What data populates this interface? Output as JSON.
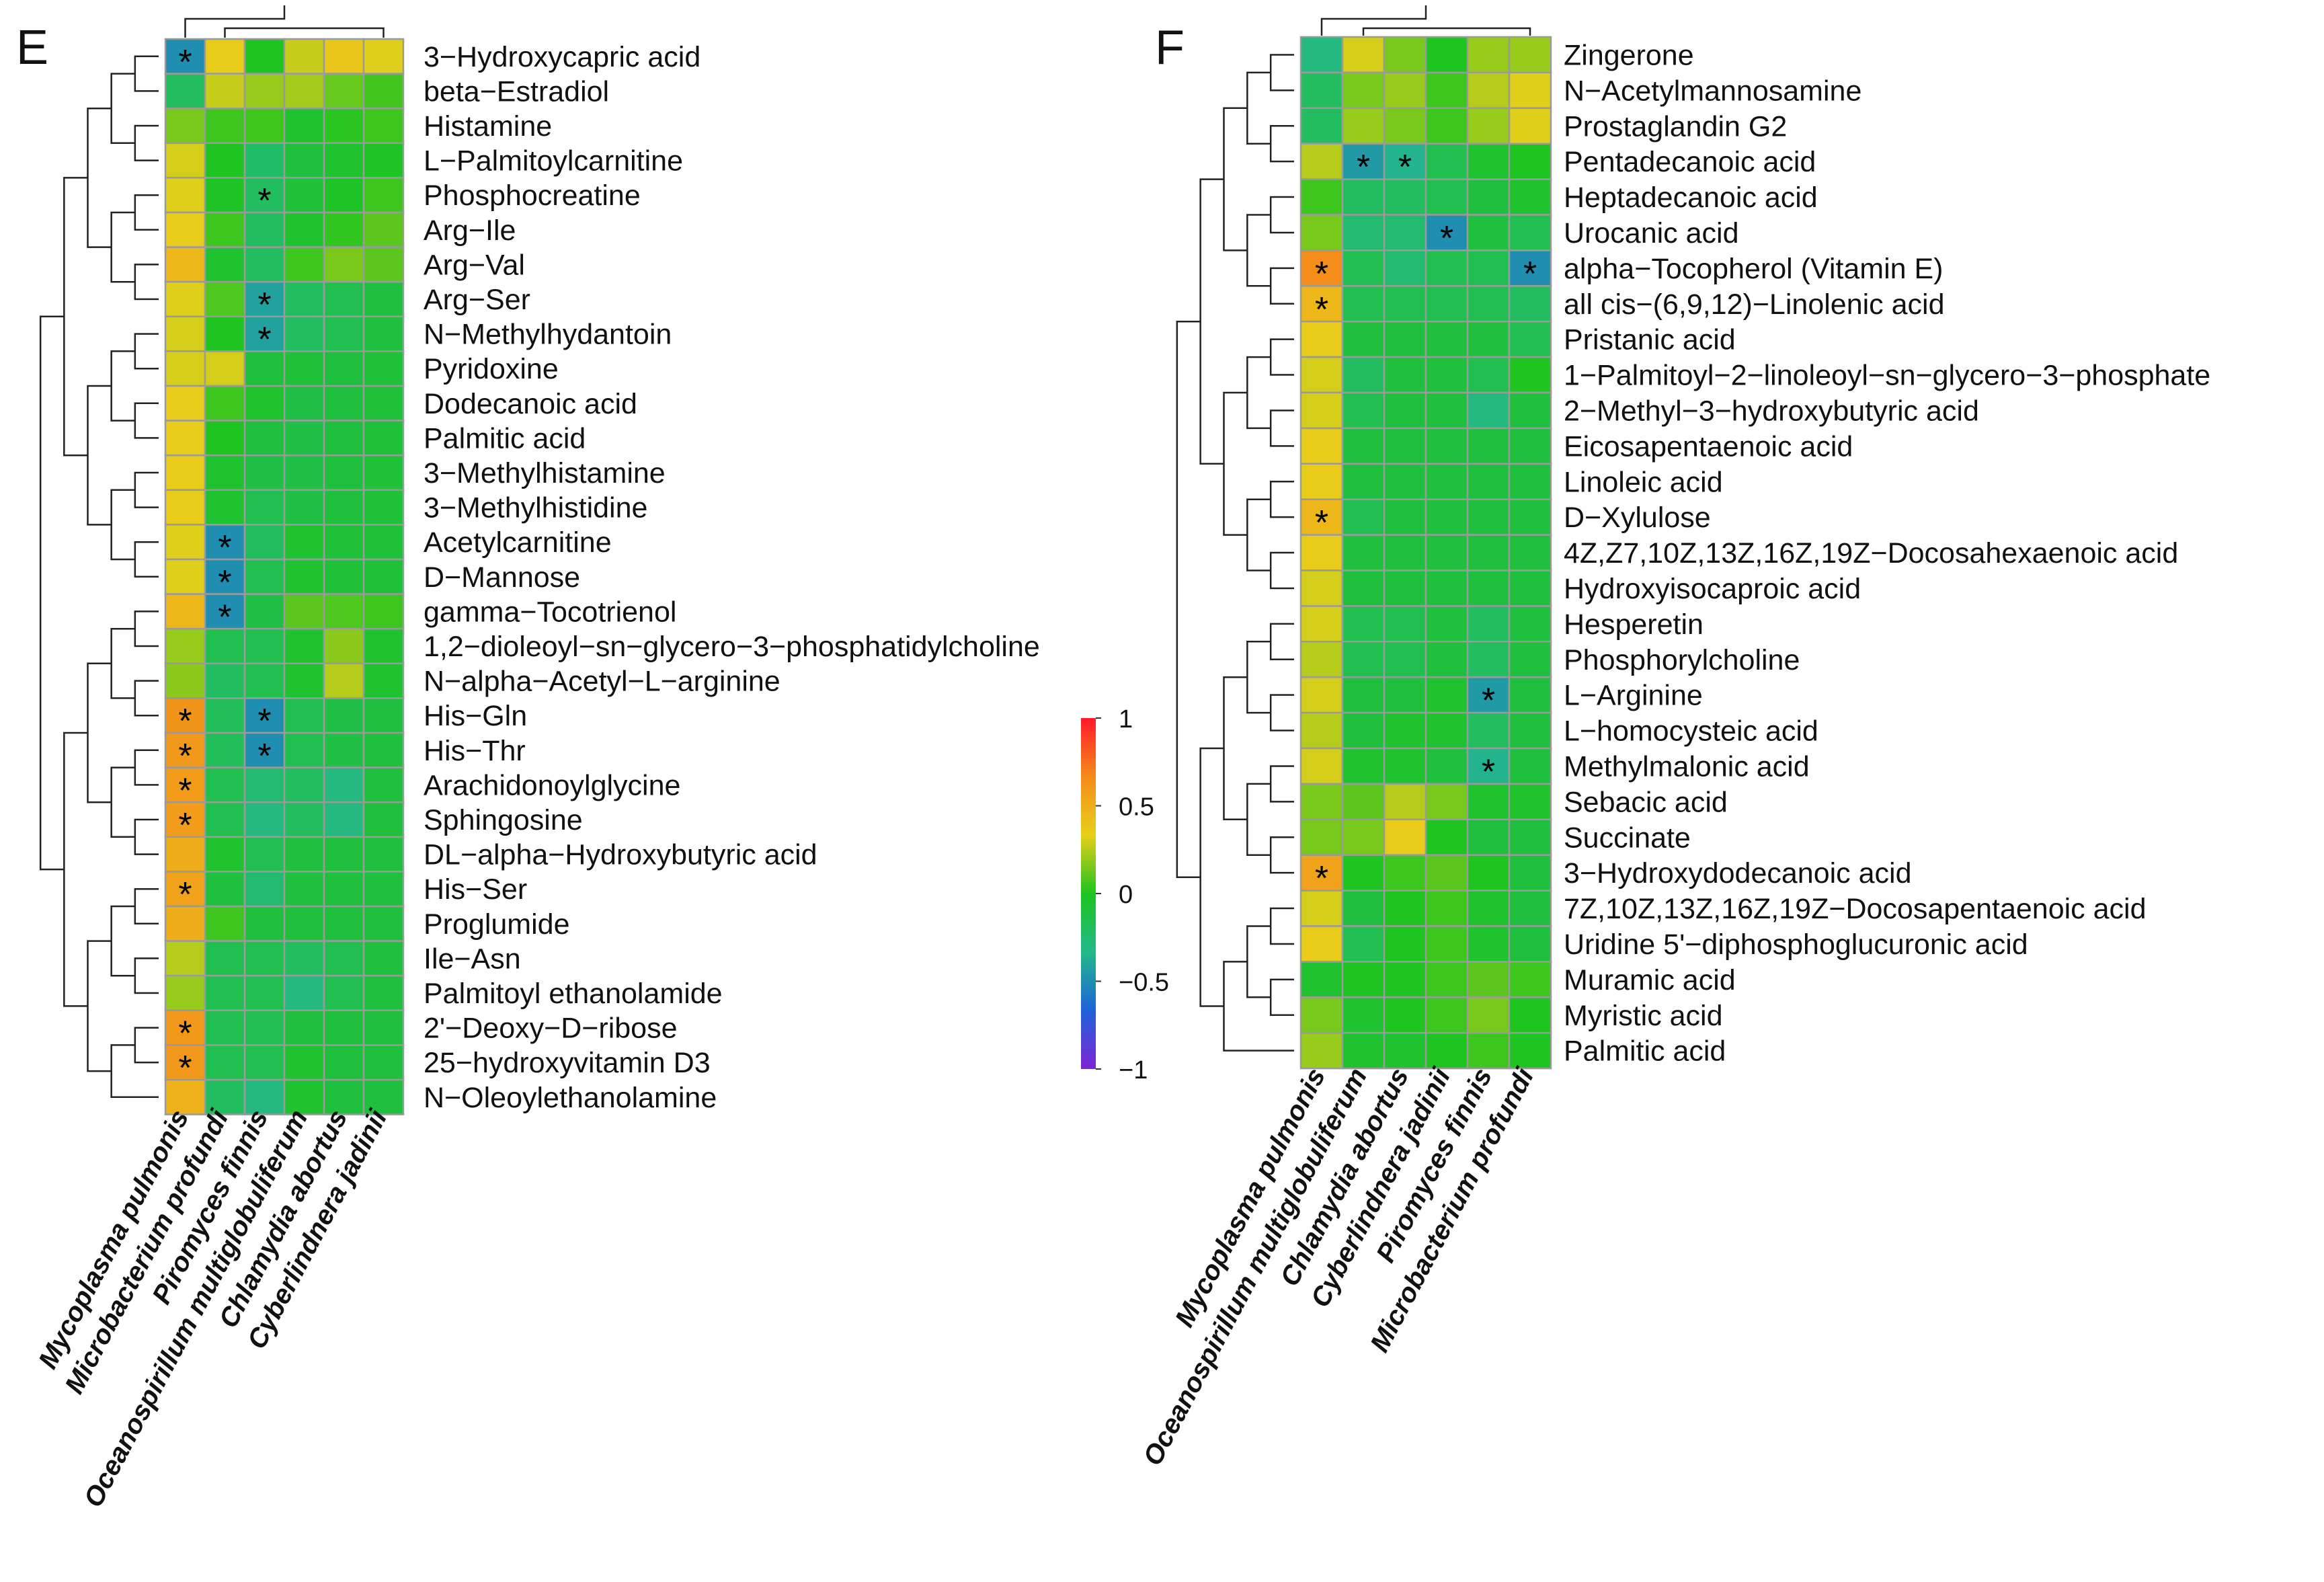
{
  "colors": {
    "scale": [
      "#7f25d6",
      "#1d63d8",
      "#23b88a",
      "#1ec41f",
      "#e8cf1a",
      "#f58a1a",
      "#ff1a2a"
    ],
    "grid": "#9a9a9a",
    "tree": "#222222",
    "text": "#111111"
  },
  "colorbar": {
    "ticks": [
      {
        "value": 1,
        "label": "1"
      },
      {
        "value": 0.5,
        "label": "0.5"
      },
      {
        "value": 0,
        "label": "0"
      },
      {
        "value": -0.5,
        "label": "−0.5"
      },
      {
        "value": -1,
        "label": "−1"
      }
    ]
  },
  "chart_data": [
    {
      "type": "heatmap",
      "panel_label": "E",
      "value_range": [
        -1,
        1
      ],
      "columns": [
        "Mycoplasma pulmonis",
        "Microbacterium profundi",
        "Piromyces finnis",
        "Oceanospirillum multiglobuliferum",
        "Chlamydia abortus",
        "Cyberlindnera jadinii"
      ],
      "rows": [
        "3−Hydroxycapric acid",
        "beta−Estradiol",
        "Histamine",
        "L−Palmitoylcarnitine",
        "Phosphocreatine",
        "Arg−Ile",
        "Arg−Val",
        "Arg−Ser",
        "N−Methylhydantoin",
        "Pyridoxine",
        "Dodecanoic acid",
        "Palmitic acid",
        "3−Methylhistamine",
        "3−Methylhistidine",
        "Acetylcarnitine",
        "D−Mannose",
        "gamma−Tocotrienol",
        "1,2−dioleoyl−sn−glycero−3−phosphatidylcholine",
        "N−alpha−Acetyl−L−arginine",
        "His−Gln",
        "His−Thr",
        "Arachidonoylglycine",
        "Sphingosine",
        "DL−alpha−Hydroxybutyric acid",
        "His−Ser",
        "Proglumide",
        "Ile−Asn",
        "Palmitoyl ethanolamide",
        "2'−Deoxy−D−ribose",
        "25−hydroxyvitamin D3",
        "N−Oleoylethanolamine"
      ],
      "values": [
        [
          -0.5,
          0.35,
          0.0,
          0.28,
          0.38,
          0.32
        ],
        [
          -0.2,
          0.28,
          0.2,
          0.22,
          0.12,
          0.06
        ],
        [
          0.15,
          0.05,
          0.05,
          -0.05,
          0.02,
          0.05
        ],
        [
          0.3,
          0.0,
          -0.22,
          -0.1,
          -0.05,
          -0.02
        ],
        [
          0.32,
          -0.02,
          -0.2,
          -0.08,
          -0.02,
          0.05
        ],
        [
          0.35,
          0.05,
          -0.2,
          -0.05,
          0.03,
          0.1
        ],
        [
          0.45,
          -0.05,
          -0.2,
          0.05,
          0.15,
          0.1
        ],
        [
          0.32,
          0.08,
          -0.42,
          -0.2,
          -0.15,
          -0.1
        ],
        [
          0.3,
          0.0,
          -0.42,
          -0.2,
          -0.15,
          -0.1
        ],
        [
          0.3,
          0.3,
          -0.1,
          -0.08,
          -0.1,
          -0.08
        ],
        [
          0.35,
          0.05,
          -0.05,
          -0.12,
          -0.1,
          -0.08
        ],
        [
          0.35,
          0.0,
          -0.1,
          -0.12,
          -0.1,
          -0.08
        ],
        [
          0.35,
          -0.05,
          -0.12,
          -0.12,
          -0.1,
          -0.08
        ],
        [
          0.35,
          -0.05,
          -0.15,
          -0.12,
          -0.1,
          -0.08
        ],
        [
          0.32,
          -0.5,
          -0.2,
          -0.05,
          -0.08,
          -0.08
        ],
        [
          0.32,
          -0.5,
          -0.15,
          -0.05,
          -0.08,
          -0.08
        ],
        [
          0.45,
          -0.5,
          -0.12,
          0.1,
          0.08,
          0.05
        ],
        [
          0.2,
          -0.15,
          -0.15,
          -0.05,
          0.18,
          -0.05
        ],
        [
          0.18,
          -0.2,
          -0.15,
          -0.05,
          0.25,
          -0.05
        ],
        [
          0.62,
          -0.18,
          -0.5,
          -0.15,
          -0.12,
          -0.1
        ],
        [
          0.6,
          -0.18,
          -0.5,
          -0.15,
          -0.12,
          -0.1
        ],
        [
          0.58,
          -0.15,
          -0.25,
          -0.2,
          -0.3,
          -0.1
        ],
        [
          0.58,
          -0.15,
          -0.3,
          -0.2,
          -0.3,
          -0.1
        ],
        [
          0.5,
          -0.05,
          -0.15,
          -0.1,
          -0.1,
          -0.1
        ],
        [
          0.55,
          -0.1,
          -0.25,
          -0.1,
          -0.1,
          -0.1
        ],
        [
          0.5,
          0.05,
          -0.1,
          -0.1,
          -0.1,
          -0.1
        ],
        [
          0.25,
          -0.15,
          -0.15,
          -0.2,
          -0.15,
          -0.1
        ],
        [
          0.2,
          -0.15,
          -0.15,
          -0.3,
          -0.15,
          -0.1
        ],
        [
          0.6,
          -0.15,
          -0.15,
          -0.1,
          -0.1,
          -0.1
        ],
        [
          0.6,
          -0.15,
          -0.15,
          -0.05,
          -0.1,
          -0.1
        ],
        [
          0.48,
          -0.2,
          -0.3,
          -0.05,
          -0.1,
          -0.1
        ]
      ],
      "significant": [
        [
          0,
          0
        ],
        [
          4,
          2
        ],
        [
          7,
          2
        ],
        [
          8,
          2
        ],
        [
          14,
          1
        ],
        [
          15,
          1
        ],
        [
          16,
          1
        ],
        [
          19,
          0
        ],
        [
          19,
          2
        ],
        [
          20,
          0
        ],
        [
          20,
          2
        ],
        [
          21,
          0
        ],
        [
          22,
          0
        ],
        [
          24,
          0
        ],
        [
          28,
          0
        ],
        [
          29,
          0
        ]
      ],
      "significance_symbol": "*"
    },
    {
      "type": "heatmap",
      "panel_label": "F",
      "value_range": [
        -1,
        1
      ],
      "columns": [
        "Mycoplasma pulmonis",
        "Oceanospirillum multiglobuliferum",
        "Chlamydia abortus",
        "Cyberlindnera jadinii",
        "Piromyces finnis",
        "Microbacterium profundi"
      ],
      "rows": [
        "Zingerone",
        "N−Acetylmannosamine",
        "Prostaglandin G2",
        "Pentadecanoic acid",
        "Heptadecanoic acid",
        "Urocanic acid",
        "alpha−Tocopherol (Vitamin E)",
        "all cis−(6,9,12)−Linolenic acid",
        "Pristanic acid",
        "1−Palmitoyl−2−linoleoyl−sn−glycero−3−phosphate",
        "2−Methyl−3−hydroxybutyric acid",
        "Eicosapentaenoic acid",
        "Linoleic acid",
        "D−Xylulose",
        "4Z,Z7,10Z,13Z,16Z,19Z−Docosahexaenoic acid",
        "Hydroxyisocaproic acid",
        "Hesperetin",
        "Phosphorylcholine",
        "L−Arginine",
        "L−homocysteic acid",
        "Methylmalonic acid",
        "Sebacic acid",
        "Succinate",
        "3−Hydroxydodecanoic acid",
        "7Z,10Z,13Z,16Z,19Z−Docosapentaenoic acid",
        "Uridine 5'−diphosphoglucuronic acid",
        "Muramic acid",
        "Myristic acid",
        "Palmitic acid"
      ],
      "values": [
        [
          -0.3,
          0.3,
          0.15,
          0.0,
          0.2,
          0.2
        ],
        [
          -0.2,
          0.15,
          0.2,
          0.05,
          0.25,
          0.32
        ],
        [
          -0.2,
          0.2,
          0.15,
          0.05,
          0.2,
          0.32
        ],
        [
          0.25,
          -0.45,
          -0.35,
          -0.15,
          -0.05,
          0.0
        ],
        [
          0.05,
          -0.2,
          -0.2,
          -0.15,
          -0.1,
          -0.05
        ],
        [
          0.15,
          -0.25,
          -0.25,
          -0.5,
          -0.1,
          -0.15
        ],
        [
          0.65,
          -0.15,
          -0.25,
          -0.15,
          -0.15,
          -0.5
        ],
        [
          0.45,
          -0.15,
          -0.15,
          -0.15,
          -0.15,
          -0.2
        ],
        [
          0.35,
          -0.1,
          -0.1,
          -0.1,
          -0.1,
          -0.15
        ],
        [
          0.3,
          -0.2,
          -0.1,
          -0.1,
          -0.15,
          0.0
        ],
        [
          0.3,
          -0.15,
          -0.1,
          -0.1,
          -0.3,
          -0.1
        ],
        [
          0.35,
          -0.1,
          -0.1,
          -0.1,
          -0.1,
          -0.1
        ],
        [
          0.35,
          -0.1,
          -0.1,
          -0.1,
          -0.1,
          -0.1
        ],
        [
          0.45,
          -0.15,
          -0.1,
          -0.1,
          -0.1,
          -0.1
        ],
        [
          0.35,
          -0.1,
          -0.1,
          -0.1,
          -0.1,
          -0.1
        ],
        [
          0.3,
          -0.1,
          -0.1,
          -0.1,
          -0.1,
          -0.1
        ],
        [
          0.3,
          -0.15,
          -0.15,
          -0.1,
          -0.2,
          -0.1
        ],
        [
          0.25,
          -0.15,
          -0.15,
          -0.1,
          -0.2,
          -0.1
        ],
        [
          0.3,
          -0.1,
          -0.1,
          -0.05,
          -0.45,
          -0.1
        ],
        [
          0.25,
          -0.1,
          -0.05,
          -0.05,
          -0.2,
          -0.1
        ],
        [
          0.3,
          -0.05,
          -0.05,
          -0.1,
          -0.35,
          -0.1
        ],
        [
          0.15,
          0.1,
          0.25,
          0.15,
          -0.05,
          -0.05
        ],
        [
          0.15,
          0.15,
          0.35,
          0.0,
          -0.1,
          -0.1
        ],
        [
          0.55,
          0.0,
          0.05,
          0.1,
          0.0,
          -0.1
        ],
        [
          0.3,
          -0.1,
          0.0,
          0.05,
          -0.05,
          -0.1
        ],
        [
          0.35,
          -0.15,
          0.0,
          0.05,
          -0.05,
          -0.1
        ],
        [
          -0.05,
          0.0,
          0.0,
          0.05,
          0.1,
          0.05
        ],
        [
          0.15,
          -0.05,
          0.0,
          0.05,
          0.15,
          0.0
        ],
        [
          0.2,
          -0.05,
          -0.05,
          0.0,
          0.05,
          0.0
        ]
      ],
      "significant": [
        [
          3,
          1
        ],
        [
          3,
          2
        ],
        [
          5,
          3
        ],
        [
          6,
          0
        ],
        [
          6,
          5
        ],
        [
          7,
          0
        ],
        [
          13,
          0
        ],
        [
          18,
          4
        ],
        [
          20,
          4
        ],
        [
          23,
          0
        ]
      ],
      "significance_symbol": "*"
    }
  ]
}
